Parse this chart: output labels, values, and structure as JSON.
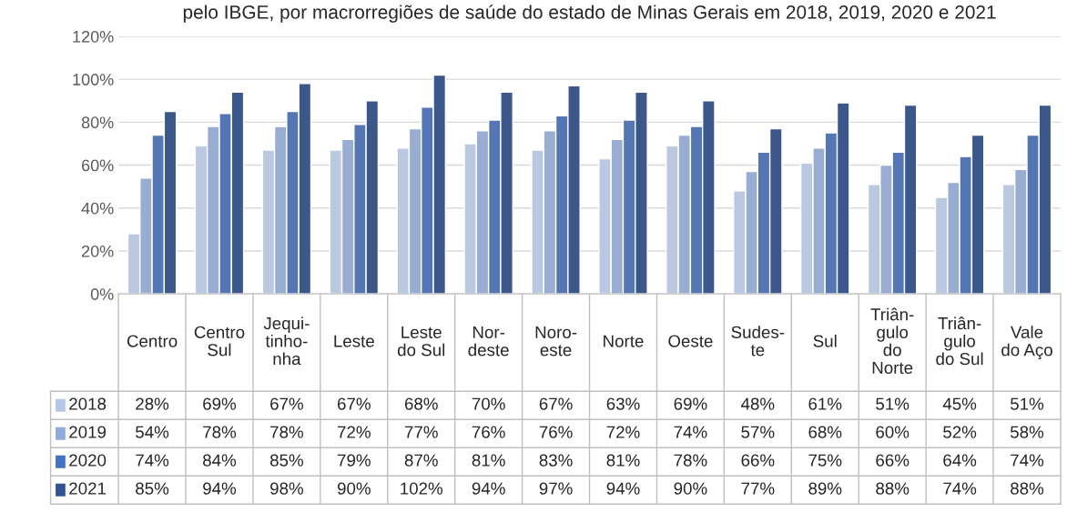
{
  "chart_data": {
    "type": "bar",
    "title": "pelo IBGE, por macrorregiões de saúde do estado de Minas Gerais em 2018, 2019, 2020 e 2021",
    "categories": [
      "Centro",
      "Centro\nSul",
      "Jequi-\ntinho-\nnha",
      "Leste",
      "Leste\ndo Sul",
      "Nor-\ndeste",
      "Noro-\neste",
      "Norte",
      "Oeste",
      "Sudes-\nte",
      "Sul",
      "Triân-\ngulo\ndo\nNorte",
      "Triân-\ngulo\ndo Sul",
      "Vale\ndo Aço"
    ],
    "series": [
      {
        "name": "2018",
        "color": "#b4c7e7",
        "values": [
          28,
          69,
          67,
          67,
          68,
          70,
          67,
          63,
          69,
          48,
          61,
          51,
          45,
          51
        ],
        "value_labels": [
          "28%",
          "69%",
          "67%",
          "67%",
          "68%",
          "70%",
          "67%",
          "63%",
          "69%",
          "48%",
          "61%",
          "51%",
          "45%",
          "51%"
        ]
      },
      {
        "name": "2019",
        "color": "#8faadc",
        "values": [
          54,
          78,
          78,
          72,
          77,
          76,
          76,
          72,
          74,
          57,
          68,
          60,
          52,
          58
        ],
        "value_labels": [
          "54%",
          "78%",
          "78%",
          "72%",
          "77%",
          "76%",
          "76%",
          "72%",
          "74%",
          "57%",
          "68%",
          "60%",
          "52%",
          "58%"
        ]
      },
      {
        "name": "2020",
        "color": "#4472c4",
        "values": [
          74,
          84,
          85,
          79,
          87,
          81,
          83,
          81,
          78,
          66,
          75,
          66,
          64,
          74
        ],
        "value_labels": [
          "74%",
          "84%",
          "85%",
          "79%",
          "87%",
          "81%",
          "83%",
          "81%",
          "78%",
          "66%",
          "75%",
          "66%",
          "64%",
          "74%"
        ]
      },
      {
        "name": "2021",
        "color": "#2f5597",
        "values": [
          85,
          94,
          98,
          90,
          102,
          94,
          97,
          94,
          90,
          77,
          89,
          88,
          74,
          88
        ],
        "value_labels": [
          "85%",
          "94%",
          "98%",
          "90%",
          "102%",
          "94%",
          "97%",
          "94%",
          "90%",
          "77%",
          "89%",
          "88%",
          "74%",
          "88%"
        ]
      }
    ],
    "ylim": [
      0,
      120
    ],
    "yticks": [
      {
        "value": 0,
        "label": "0%"
      },
      {
        "value": 20,
        "label": "20%"
      },
      {
        "value": 40,
        "label": "40%"
      },
      {
        "value": 60,
        "label": "60%"
      },
      {
        "value": 80,
        "label": "80%"
      },
      {
        "value": 100,
        "label": "100%"
      },
      {
        "value": 120,
        "label": "120%"
      }
    ],
    "grid": "y",
    "legend": "bottom"
  }
}
